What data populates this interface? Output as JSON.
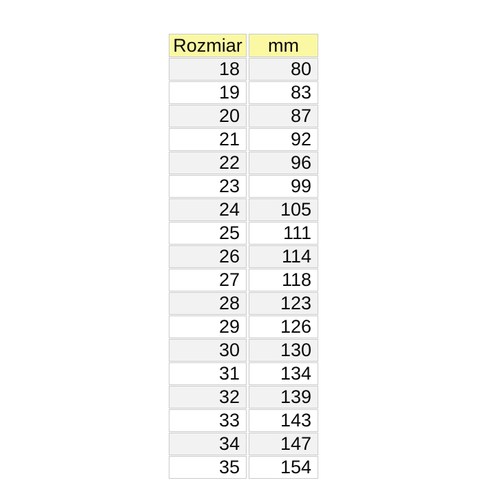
{
  "table": {
    "headers": [
      "Rozmiar",
      "mm"
    ],
    "rows": [
      [
        18,
        80
      ],
      [
        19,
        83
      ],
      [
        20,
        87
      ],
      [
        21,
        92
      ],
      [
        22,
        96
      ],
      [
        23,
        99
      ],
      [
        24,
        105
      ],
      [
        25,
        111
      ],
      [
        26,
        114
      ],
      [
        27,
        118
      ],
      [
        28,
        123
      ],
      [
        29,
        126
      ],
      [
        30,
        130
      ],
      [
        31,
        134
      ],
      [
        32,
        139
      ],
      [
        33,
        143
      ],
      [
        34,
        147
      ],
      [
        35,
        154
      ]
    ]
  },
  "colors": {
    "header_bg": "#fbf8a3",
    "band_bg": "#f2f2f2",
    "border": "#c9c9c9",
    "text": "#0a0a0a",
    "page_bg": "#ffffff"
  },
  "chart_data": {
    "type": "table",
    "title": "",
    "columns": [
      "Rozmiar",
      "mm"
    ],
    "rows": [
      [
        18,
        80
      ],
      [
        19,
        83
      ],
      [
        20,
        87
      ],
      [
        21,
        92
      ],
      [
        22,
        96
      ],
      [
        23,
        99
      ],
      [
        24,
        105
      ],
      [
        25,
        111
      ],
      [
        26,
        114
      ],
      [
        27,
        118
      ],
      [
        28,
        123
      ],
      [
        29,
        126
      ],
      [
        30,
        130
      ],
      [
        31,
        134
      ],
      [
        32,
        139
      ],
      [
        33,
        143
      ],
      [
        34,
        147
      ],
      [
        35,
        154
      ]
    ],
    "layout": {
      "header_fill": "#fbf8a3",
      "banded_rows": true,
      "band_fill": "#f2f2f2",
      "first_data_row_banded": true,
      "number_alignment": "right",
      "header_alignment": "center"
    }
  }
}
